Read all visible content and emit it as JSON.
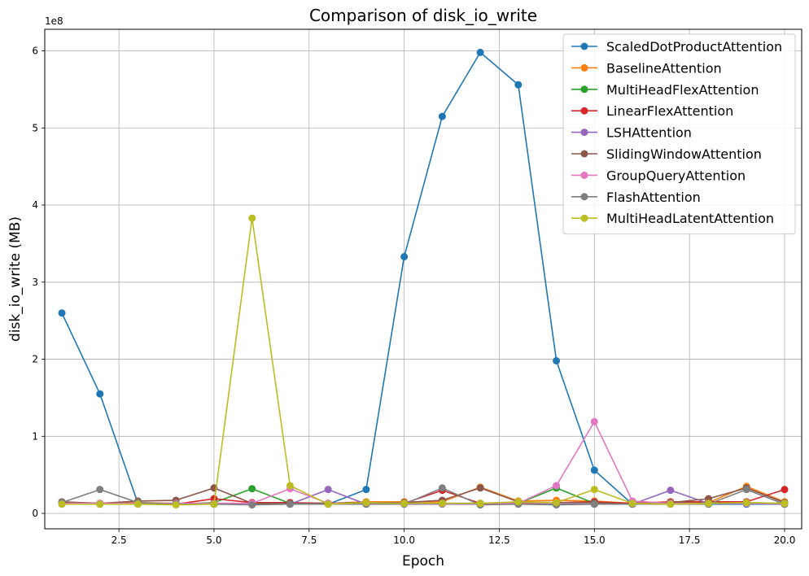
{
  "chart_data": {
    "type": "line",
    "title": "Comparison of disk_io_write",
    "xlabel": "Epoch",
    "ylabel": "disk_io_write (MB)",
    "y_offset_label": "1e8",
    "xlim": [
      0.55,
      20.45
    ],
    "ylim": [
      -0.2,
      6.28
    ],
    "x_ticks": [
      2.5,
      5.0,
      7.5,
      10.0,
      12.5,
      15.0,
      17.5,
      20.0
    ],
    "x_tick_labels": [
      "2.5",
      "5.0",
      "7.5",
      "10.0",
      "12.5",
      "15.0",
      "17.5",
      "20.0"
    ],
    "y_ticks": [
      0,
      1,
      2,
      3,
      4,
      5,
      6
    ],
    "y_tick_labels": [
      "0",
      "1",
      "2",
      "3",
      "4",
      "5",
      "6"
    ],
    "grid": true,
    "legend_position": "top-right",
    "x": [
      1,
      2,
      3,
      4,
      5,
      6,
      7,
      8,
      9,
      10,
      11,
      12,
      13,
      14,
      15,
      16,
      17,
      18,
      19,
      20
    ],
    "series": [
      {
        "name": "ScaledDotProductAttention",
        "color": "#1f77b4",
        "values": [
          2.6,
          1.55,
          0.13,
          0.12,
          0.12,
          0.12,
          0.12,
          0.12,
          0.31,
          3.33,
          5.15,
          5.98,
          5.56,
          1.98,
          0.56,
          0.12,
          0.12,
          0.12,
          0.12,
          0.12
        ]
      },
      {
        "name": "BaselineAttention",
        "color": "#ff7f0e",
        "values": [
          0.14,
          0.13,
          0.14,
          0.13,
          0.13,
          0.13,
          0.13,
          0.13,
          0.15,
          0.15,
          0.15,
          0.34,
          0.16,
          0.17,
          0.16,
          0.13,
          0.13,
          0.14,
          0.35,
          0.15
        ]
      },
      {
        "name": "MultiHeadFlexAttention",
        "color": "#2ca02c",
        "values": [
          0.13,
          0.12,
          0.13,
          0.12,
          0.14,
          0.32,
          0.13,
          0.13,
          0.13,
          0.13,
          0.13,
          0.13,
          0.13,
          0.33,
          0.13,
          0.13,
          0.13,
          0.14,
          0.14,
          0.13
        ]
      },
      {
        "name": "LinearFlexAttention",
        "color": "#d62728",
        "values": [
          0.14,
          0.13,
          0.13,
          0.12,
          0.19,
          0.14,
          0.14,
          0.13,
          0.14,
          0.13,
          0.3,
          0.13,
          0.14,
          0.14,
          0.15,
          0.13,
          0.15,
          0.15,
          0.15,
          0.31
        ]
      },
      {
        "name": "LSHAttention",
        "color": "#9467bd",
        "values": [
          0.13,
          0.12,
          0.12,
          0.12,
          0.12,
          0.12,
          0.12,
          0.31,
          0.12,
          0.12,
          0.12,
          0.12,
          0.12,
          0.12,
          0.12,
          0.12,
          0.3,
          0.13,
          0.13,
          0.12
        ]
      },
      {
        "name": "SlidingWindowAttention",
        "color": "#8c564b",
        "values": [
          0.15,
          0.13,
          0.16,
          0.17,
          0.33,
          0.13,
          0.13,
          0.13,
          0.14,
          0.14,
          0.17,
          0.33,
          0.15,
          0.14,
          0.14,
          0.12,
          0.14,
          0.19,
          0.33,
          0.14
        ]
      },
      {
        "name": "GroupQueryAttention",
        "color": "#e377c2",
        "values": [
          0.13,
          0.13,
          0.13,
          0.13,
          0.13,
          0.13,
          0.32,
          0.13,
          0.13,
          0.13,
          0.13,
          0.13,
          0.13,
          0.36,
          1.19,
          0.16,
          0.13,
          0.13,
          0.13,
          0.13
        ]
      },
      {
        "name": "FlashAttention",
        "color": "#7f7f7f",
        "values": [
          0.14,
          0.31,
          0.14,
          0.12,
          0.12,
          0.11,
          0.12,
          0.12,
          0.12,
          0.12,
          0.33,
          0.11,
          0.12,
          0.11,
          0.12,
          0.12,
          0.12,
          0.12,
          0.31,
          0.12
        ]
      },
      {
        "name": "MultiHeadLatentAttention",
        "color": "#bcbd22",
        "values": [
          0.12,
          0.12,
          0.12,
          0.11,
          0.12,
          3.83,
          0.36,
          0.12,
          0.14,
          0.13,
          0.13,
          0.13,
          0.15,
          0.14,
          0.31,
          0.13,
          0.12,
          0.13,
          0.14,
          0.13
        ]
      }
    ]
  }
}
